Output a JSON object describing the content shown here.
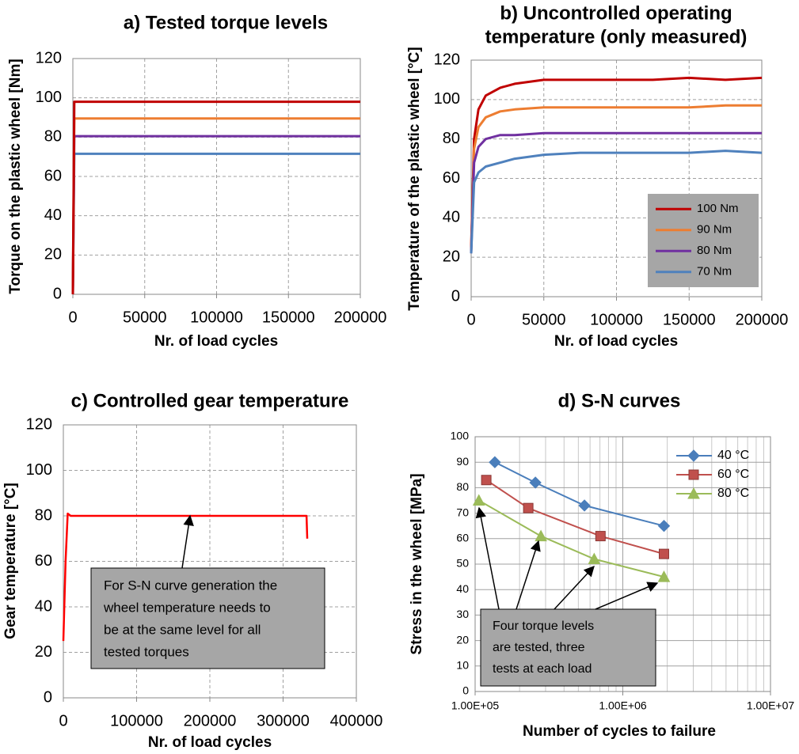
{
  "chart_data": [
    {
      "type": "line",
      "title": "a) Tested torque levels",
      "xlabel": "Nr. of load cycles",
      "ylabel": "Torque on the plastic wheel [Nm]",
      "x": [
        0,
        1000,
        200000
      ],
      "series": [
        {
          "color": "#4f81bd",
          "values": [
            0,
            71.5,
            71.5
          ]
        },
        {
          "color": "#7030a0",
          "values": [
            0,
            80.5,
            80.5
          ]
        },
        {
          "color": "#ed7d31",
          "values": [
            0,
            89.5,
            89.5
          ]
        },
        {
          "color": "#c00000",
          "values": [
            0,
            98,
            98
          ]
        }
      ],
      "xlim": [
        0,
        200000
      ],
      "xticks": [
        0,
        50000,
        100000,
        150000,
        200000
      ],
      "ylim": [
        0,
        120
      ],
      "yticks": [
        0,
        20,
        40,
        60,
        80,
        100,
        120
      ],
      "grid": true
    },
    {
      "type": "line",
      "title": [
        "b) Uncontrolled operating",
        "temperature (only measured)"
      ],
      "xlabel": "Nr. of load cycles",
      "ylabel": "Temperature  of the plastic wheel [°C]",
      "x": [
        0,
        2000,
        5000,
        10000,
        20000,
        30000,
        50000,
        75000,
        100000,
        125000,
        150000,
        175000,
        200000
      ],
      "series": [
        {
          "name": "100 Nm",
          "color": "#c00000",
          "values": [
            25,
            80,
            95,
            102,
            106,
            108,
            110,
            110,
            110,
            110,
            111,
            110,
            111
          ]
        },
        {
          "name": "90 Nm",
          "color": "#ed7d31",
          "values": [
            23,
            75,
            86,
            91,
            94,
            95,
            96,
            96,
            96,
            96,
            96,
            97,
            97
          ]
        },
        {
          "name": "80 Nm",
          "color": "#7030a0",
          "values": [
            22,
            68,
            76,
            80,
            82,
            82,
            83,
            83,
            83,
            83,
            83,
            83,
            83
          ]
        },
        {
          "name": "70 Nm",
          "color": "#4f81bd",
          "values": [
            22,
            58,
            63,
            66,
            68,
            70,
            72,
            73,
            73,
            73,
            73,
            74,
            73
          ]
        }
      ],
      "xlim": [
        0,
        200000
      ],
      "xticks": [
        0,
        50000,
        100000,
        150000,
        200000
      ],
      "ylim": [
        0,
        120
      ],
      "yticks": [
        0,
        20,
        40,
        60,
        80,
        100,
        120
      ],
      "grid": true,
      "legend": "lower right",
      "legend_background": "#a6a6a6"
    },
    {
      "type": "line",
      "title": "c) Controlled gear temperature",
      "xlabel": "Nr. of load cycles",
      "ylabel": "Gear temperature [°C]",
      "x": [
        0,
        3000,
        6000,
        10000,
        50000,
        100000,
        200000,
        300000,
        332000,
        333000
      ],
      "series": [
        {
          "color": "#ff0000",
          "values": [
            25,
            60,
            81,
            80,
            80,
            80,
            80,
            80,
            80,
            70
          ]
        }
      ],
      "xlim": [
        0,
        400000
      ],
      "xticks": [
        0,
        100000,
        200000,
        300000,
        400000
      ],
      "ylim": [
        0,
        120
      ],
      "yticks": [
        0,
        20,
        40,
        60,
        80,
        100,
        120
      ],
      "grid": true,
      "annotation": [
        "For S-N curve generation the",
        "wheel temperature needs to",
        "be at the same level for all",
        "tested torques"
      ]
    },
    {
      "type": "line",
      "title": "d) S-N curves",
      "xlabel": "Number of cycles to failure",
      "ylabel": "Stress in the wheel [MPa]",
      "xscale": "log",
      "series": [
        {
          "name": "40 °C",
          "color": "#4a7ebb",
          "marker": "diamond",
          "x": [
            136000,
            256000,
            550000,
            1900000
          ],
          "values": [
            90,
            82,
            73,
            65
          ]
        },
        {
          "name": "60 °C",
          "color": "#c0504d",
          "marker": "square",
          "x": [
            119000,
            229000,
            706000,
            1900000
          ],
          "values": [
            83,
            72,
            61,
            54
          ]
        },
        {
          "name": "80 °C",
          "color": "#9bbb59",
          "marker": "triangle",
          "x": [
            106000,
            279000,
            640000,
            1900000
          ],
          "values": [
            75,
            61,
            52,
            45
          ]
        }
      ],
      "xlim": [
        100000,
        10000000
      ],
      "xticks": [
        {
          "value": 100000,
          "label": "1.00E+05"
        },
        {
          "value": 1000000,
          "label": "1.00E+06"
        },
        {
          "value": 10000000,
          "label": "1.00E+07"
        }
      ],
      "xminorticks": [
        200000,
        300000,
        400000,
        500000,
        600000,
        700000,
        800000,
        900000,
        2000000,
        3000000,
        4000000,
        5000000,
        6000000,
        7000000,
        8000000,
        9000000
      ],
      "ylim": [
        0,
        100
      ],
      "yticks": [
        0,
        10,
        20,
        30,
        40,
        50,
        60,
        70,
        80,
        90,
        100
      ],
      "grid": true,
      "legend": "upper right",
      "annotation": [
        "Four torque levels",
        "are tested, three",
        "tests at each load"
      ]
    }
  ]
}
